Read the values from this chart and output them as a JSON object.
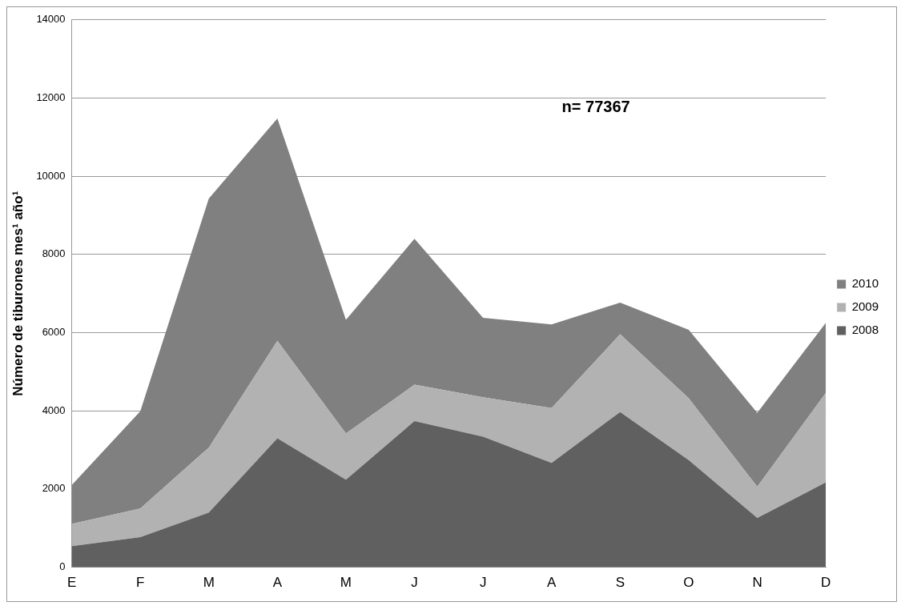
{
  "chart_data": {
    "type": "area",
    "stacked": true,
    "ylabel": "Número de tiburones mes¹ año¹",
    "categories": [
      "E",
      "F",
      "M",
      "A",
      "M",
      "J",
      "J",
      "A",
      "S",
      "O",
      "N",
      "D"
    ],
    "series": [
      {
        "name": "2008",
        "color": "#606060",
        "values": [
          540,
          770,
          1400,
          3300,
          2240,
          3740,
          3340,
          2670,
          3970,
          2740,
          1260,
          2170
        ]
      },
      {
        "name": "2009",
        "color": "#b2b2b2",
        "values": [
          570,
          730,
          1660,
          2490,
          1180,
          930,
          1010,
          1400,
          1990,
          1580,
          800,
          2290
        ]
      },
      {
        "name": "2010",
        "color": "#808080",
        "values": [
          990,
          2490,
          6370,
          5690,
          2910,
          3730,
          2030,
          2140,
          810,
          1750,
          1890,
          1790
        ]
      }
    ],
    "ylim": [
      0,
      14000
    ],
    "yticks": [
      0,
      2000,
      4000,
      6000,
      8000,
      10000,
      12000,
      14000
    ],
    "grid": "y",
    "legend": "right",
    "marker": "none",
    "annotations": [
      "n= 77367"
    ]
  }
}
